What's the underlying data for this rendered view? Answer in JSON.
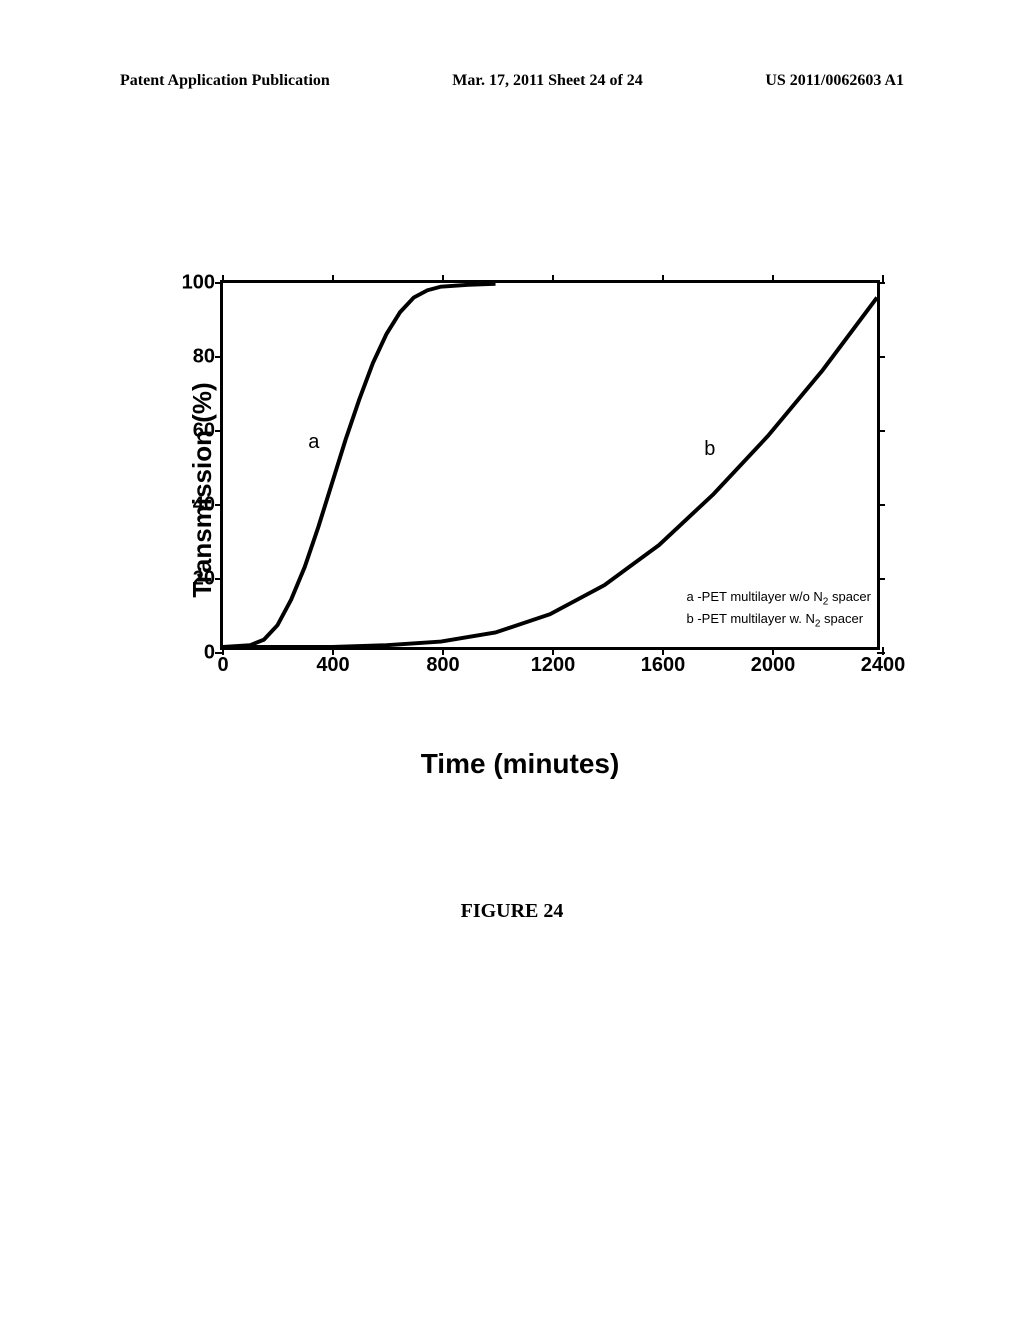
{
  "header": {
    "left": "Patent Application Publication",
    "center": "Mar. 17, 2011  Sheet 24 of 24",
    "right": "US 2011/0062603 A1"
  },
  "chart": {
    "type": "line",
    "y_axis_label": "Transmission (%)",
    "x_axis_label": "Time (minutes)",
    "ylim": [
      0,
      100
    ],
    "xlim": [
      0,
      2400
    ],
    "y_ticks": [
      0,
      20,
      40,
      60,
      80,
      100
    ],
    "x_ticks": [
      0,
      400,
      800,
      1200,
      1600,
      2000,
      2400
    ],
    "title_fontsize": 28,
    "label_fontsize": 26,
    "tick_fontsize": 20,
    "line_width": 4,
    "line_color": "#000000",
    "background_color": "#ffffff",
    "border_color": "#000000",
    "border_width": 3,
    "curve_a": {
      "label": "a",
      "label_x": 310,
      "label_y": 60,
      "data": [
        [
          0,
          0
        ],
        [
          100,
          0.5
        ],
        [
          150,
          2
        ],
        [
          200,
          6
        ],
        [
          250,
          13
        ],
        [
          300,
          22
        ],
        [
          350,
          33
        ],
        [
          400,
          45
        ],
        [
          450,
          57
        ],
        [
          500,
          68
        ],
        [
          550,
          78
        ],
        [
          600,
          86
        ],
        [
          650,
          92
        ],
        [
          700,
          96
        ],
        [
          750,
          98
        ],
        [
          800,
          99
        ],
        [
          900,
          99.5
        ],
        [
          1000,
          99.8
        ]
      ]
    },
    "curve_b": {
      "label": "b",
      "label_x": 1750,
      "label_y": 58,
      "data": [
        [
          0,
          0
        ],
        [
          200,
          0
        ],
        [
          400,
          0
        ],
        [
          600,
          0.5
        ],
        [
          800,
          1.5
        ],
        [
          1000,
          4
        ],
        [
          1200,
          9
        ],
        [
          1400,
          17
        ],
        [
          1600,
          28
        ],
        [
          1800,
          42
        ],
        [
          2000,
          58
        ],
        [
          2200,
          76
        ],
        [
          2400,
          96
        ]
      ]
    },
    "legend": {
      "line_a": "a -PET multilayer w/o N",
      "line_a_sub": "2",
      "line_a_suffix": " spacer",
      "line_b": "b -PET multilayer w. N",
      "line_b_sub": "2",
      "line_b_suffix": " spacer"
    }
  },
  "figure_caption": "FIGURE 24"
}
